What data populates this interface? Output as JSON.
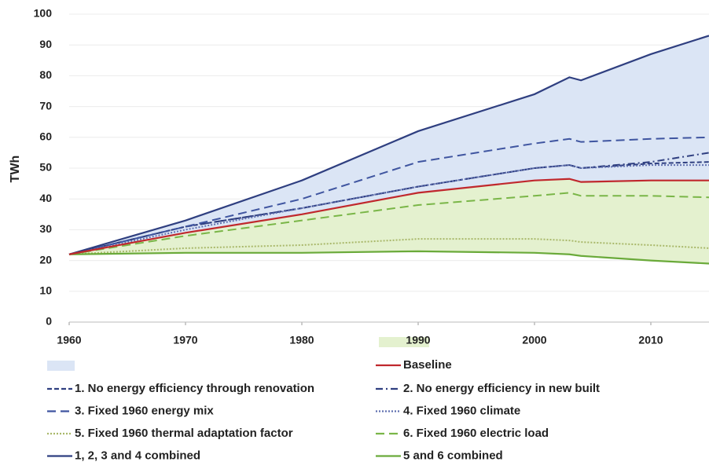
{
  "chart_data": {
    "type": "line",
    "y_label": "TWh",
    "x": [
      1960,
      1970,
      1980,
      1990,
      2000,
      2003,
      2004,
      2010,
      2015
    ],
    "xlim": [
      1960,
      2015
    ],
    "xticks": [
      1960,
      1970,
      1980,
      1990,
      2000,
      2010
    ],
    "ylim": [
      0,
      100
    ],
    "yticks": [
      0,
      10,
      20,
      30,
      40,
      50,
      60,
      70,
      80,
      90,
      100
    ],
    "grid": true,
    "series": [
      {
        "name": "Baseline",
        "color": "#c0282d",
        "style": "solid",
        "values": [
          22,
          29,
          35,
          42,
          46,
          46.5,
          45.5,
          46,
          46
        ]
      },
      {
        "name": "1. No energy efficiency through renovation",
        "color": "#2f3f80",
        "style": "dash",
        "values": [
          22,
          31,
          37,
          44,
          50,
          51,
          50,
          51.5,
          52
        ]
      },
      {
        "name": "2. No energy efficiency in new built",
        "color": "#2f3f80",
        "style": "dashdot",
        "values": [
          22,
          31,
          37,
          44,
          50,
          51,
          50,
          52,
          55
        ]
      },
      {
        "name": "3. Fixed 1960 energy mix",
        "color": "#3f55a0",
        "style": "longdash",
        "values": [
          22,
          31,
          40,
          52,
          58,
          59.5,
          58.5,
          59.5,
          60
        ]
      },
      {
        "name": "4. Fixed 1960 climate",
        "color": "#6070b0",
        "style": "dot",
        "values": [
          22,
          30,
          37,
          44,
          50,
          51,
          50,
          51,
          51
        ]
      },
      {
        "name": "5. Fixed 1960 thermal adaptation factor",
        "color": "#a9b86a",
        "style": "dot",
        "values": [
          22,
          24,
          25,
          27,
          27,
          26.5,
          26,
          25,
          24
        ]
      },
      {
        "name": "6. Fixed 1960 electric load",
        "color": "#7ab648",
        "style": "longdash",
        "values": [
          22,
          28,
          33,
          38,
          41,
          42,
          41,
          41,
          40.5
        ]
      },
      {
        "name": "1, 2, 3 and 4 combined",
        "color": "#2f3f80",
        "style": "solid",
        "values": [
          22,
          33,
          46,
          62,
          74,
          79.5,
          78.5,
          87,
          93
        ]
      },
      {
        "name": "5 and 6 combined",
        "color": "#6aaa3a",
        "style": "solid",
        "values": [
          22,
          22.5,
          22.5,
          23,
          22.5,
          22,
          21.5,
          20,
          19
        ]
      }
    ]
  }
}
